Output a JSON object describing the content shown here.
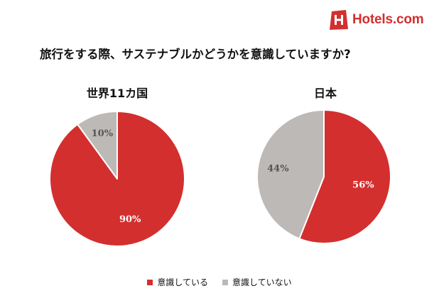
{
  "brand": {
    "logo_text": "Hotels.com",
    "logo_color": "#d32f2f"
  },
  "title": "旅行をする際、サステナブルかどうかを意識していますか?",
  "legend": {
    "labels": [
      "意識している",
      "意識していない"
    ]
  },
  "chart_data": [
    {
      "type": "pie",
      "title": "世界11カ国",
      "labels": [
        "意識している",
        "意識していない"
      ],
      "values": [
        90,
        10
      ],
      "value_labels": [
        "90%",
        "10%"
      ],
      "colors": [
        "#d32f2f",
        "#bdb9b6"
      ]
    },
    {
      "type": "pie",
      "title": "日本",
      "labels": [
        "意識している",
        "意識していない"
      ],
      "values": [
        56,
        44
      ],
      "value_labels": [
        "56%",
        "44%"
      ],
      "colors": [
        "#d32f2f",
        "#bdb9b6"
      ]
    }
  ]
}
